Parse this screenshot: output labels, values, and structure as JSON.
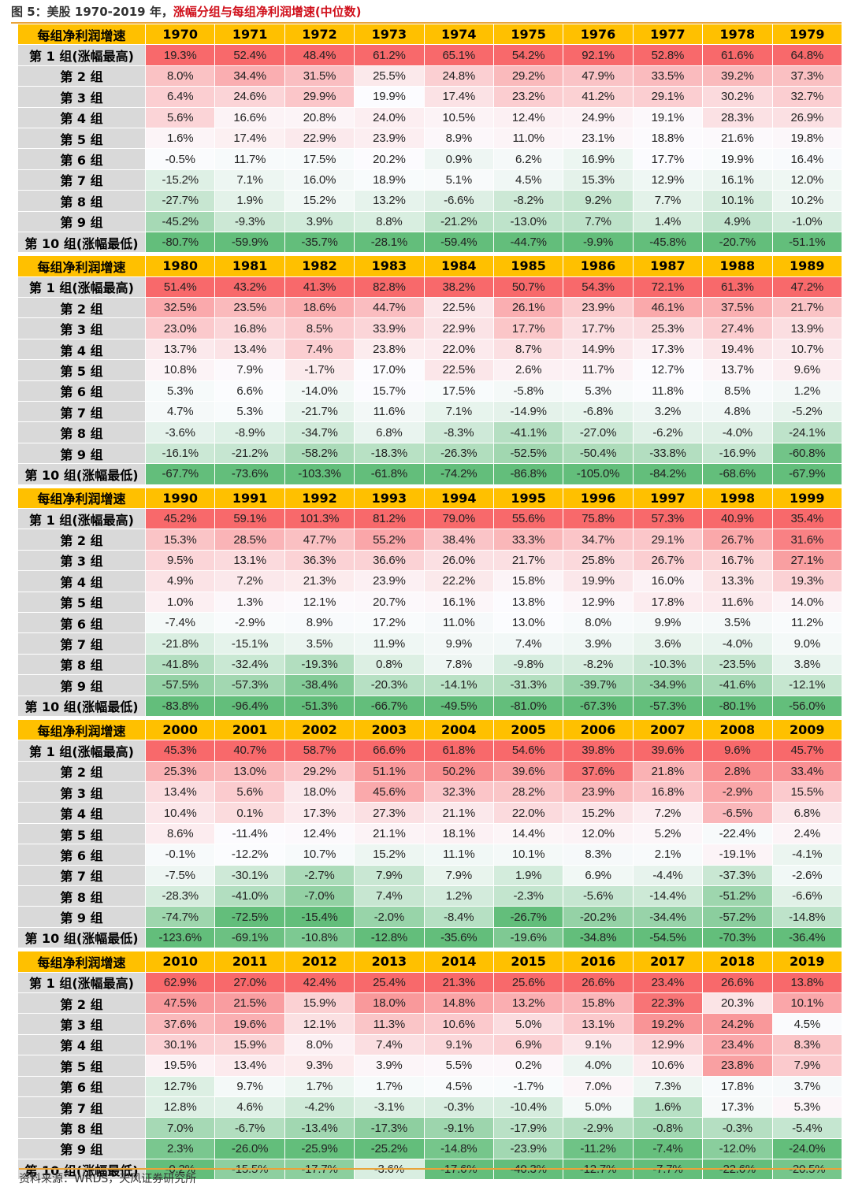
{
  "title": {
    "prefix": "图 5：美股 1970-2019 年，",
    "highlight": "涨幅分组与每组净利润增速(中位数)"
  },
  "header_label": "每组净利润增速",
  "row_labels": [
    "第 1 组(涨幅最高)",
    "第 2 组",
    "第 3 组",
    "第 4 组",
    "第 5 组",
    "第 6 组",
    "第 7 组",
    "第 8 组",
    "第 9 组",
    "第 10 组(涨幅最低)"
  ],
  "blocks": [
    {
      "years": [
        "1970",
        "1971",
        "1972",
        "1973",
        "1974",
        "1975",
        "1976",
        "1977",
        "1978",
        "1979"
      ],
      "rows": [
        [
          "19.3%",
          "52.4%",
          "48.4%",
          "61.2%",
          "65.1%",
          "54.2%",
          "92.1%",
          "52.8%",
          "61.6%",
          "64.8%"
        ],
        [
          "8.0%",
          "34.4%",
          "31.5%",
          "25.5%",
          "24.8%",
          "29.2%",
          "47.9%",
          "33.5%",
          "39.2%",
          "37.3%"
        ],
        [
          "6.4%",
          "24.6%",
          "29.9%",
          "19.9%",
          "17.4%",
          "23.2%",
          "41.2%",
          "29.1%",
          "30.2%",
          "32.7%"
        ],
        [
          "5.6%",
          "16.6%",
          "20.8%",
          "24.0%",
          "10.5%",
          "12.4%",
          "24.9%",
          "19.1%",
          "28.3%",
          "26.9%"
        ],
        [
          "1.6%",
          "17.4%",
          "22.9%",
          "23.9%",
          "8.9%",
          "11.0%",
          "23.1%",
          "18.8%",
          "21.6%",
          "19.8%"
        ],
        [
          "-0.5%",
          "11.7%",
          "17.5%",
          "20.2%",
          "0.9%",
          "6.2%",
          "16.9%",
          "17.7%",
          "19.9%",
          "16.4%"
        ],
        [
          "-15.2%",
          "7.1%",
          "16.0%",
          "18.9%",
          "5.1%",
          "4.5%",
          "15.3%",
          "12.9%",
          "16.1%",
          "12.0%"
        ],
        [
          "-27.7%",
          "1.9%",
          "15.2%",
          "13.2%",
          "-6.6%",
          "-8.2%",
          "9.2%",
          "7.7%",
          "10.1%",
          "10.2%"
        ],
        [
          "-45.2%",
          "-9.3%",
          "3.9%",
          "8.8%",
          "-21.2%",
          "-13.0%",
          "7.7%",
          "1.4%",
          "4.9%",
          "-1.0%"
        ],
        [
          "-80.7%",
          "-59.9%",
          "-35.7%",
          "-28.1%",
          "-59.4%",
          "-44.7%",
          "-9.9%",
          "-45.8%",
          "-20.7%",
          "-51.1%"
        ]
      ]
    },
    {
      "years": [
        "1980",
        "1981",
        "1982",
        "1983",
        "1984",
        "1985",
        "1986",
        "1987",
        "1988",
        "1989"
      ],
      "rows": [
        [
          "51.4%",
          "43.2%",
          "41.3%",
          "82.8%",
          "38.2%",
          "50.7%",
          "54.3%",
          "72.1%",
          "61.3%",
          "47.2%"
        ],
        [
          "32.5%",
          "23.5%",
          "18.6%",
          "44.7%",
          "22.5%",
          "26.1%",
          "23.9%",
          "46.1%",
          "37.5%",
          "21.7%"
        ],
        [
          "23.0%",
          "16.8%",
          "8.5%",
          "33.9%",
          "22.9%",
          "17.7%",
          "17.7%",
          "25.3%",
          "27.4%",
          "13.9%"
        ],
        [
          "13.7%",
          "13.4%",
          "7.4%",
          "23.8%",
          "22.0%",
          "8.7%",
          "14.9%",
          "17.3%",
          "19.4%",
          "10.7%"
        ],
        [
          "10.8%",
          "7.9%",
          "-1.7%",
          "17.0%",
          "22.5%",
          "2.6%",
          "11.7%",
          "12.7%",
          "13.7%",
          "9.6%"
        ],
        [
          "5.3%",
          "6.6%",
          "-14.0%",
          "15.7%",
          "17.5%",
          "-5.8%",
          "5.3%",
          "11.8%",
          "8.5%",
          "1.2%"
        ],
        [
          "4.7%",
          "5.3%",
          "-21.7%",
          "11.6%",
          "7.1%",
          "-14.9%",
          "-6.8%",
          "3.2%",
          "4.8%",
          "-5.2%"
        ],
        [
          "-3.6%",
          "-8.9%",
          "-34.7%",
          "6.8%",
          "-8.3%",
          "-41.1%",
          "-27.0%",
          "-6.2%",
          "-4.0%",
          "-24.1%"
        ],
        [
          "-16.1%",
          "-21.2%",
          "-58.2%",
          "-18.3%",
          "-26.3%",
          "-52.5%",
          "-50.4%",
          "-33.8%",
          "-16.9%",
          "-60.8%"
        ],
        [
          "-67.7%",
          "-73.6%",
          "-103.3%",
          "-61.8%",
          "-74.2%",
          "-86.8%",
          "-105.0%",
          "-84.2%",
          "-68.6%",
          "-67.9%"
        ]
      ]
    },
    {
      "years": [
        "1990",
        "1991",
        "1992",
        "1993",
        "1994",
        "1995",
        "1996",
        "1997",
        "1998",
        "1999"
      ],
      "rows": [
        [
          "45.2%",
          "59.1%",
          "101.3%",
          "81.2%",
          "79.0%",
          "55.6%",
          "75.8%",
          "57.3%",
          "40.9%",
          "35.4%"
        ],
        [
          "15.3%",
          "28.5%",
          "47.7%",
          "55.2%",
          "38.4%",
          "33.3%",
          "34.7%",
          "29.1%",
          "26.7%",
          "31.6%"
        ],
        [
          "9.5%",
          "13.1%",
          "36.3%",
          "36.6%",
          "26.0%",
          "21.7%",
          "25.8%",
          "26.7%",
          "16.7%",
          "27.1%"
        ],
        [
          "4.9%",
          "7.2%",
          "21.3%",
          "23.9%",
          "22.2%",
          "15.8%",
          "19.9%",
          "16.0%",
          "13.3%",
          "19.3%"
        ],
        [
          "1.0%",
          "1.3%",
          "12.1%",
          "20.7%",
          "16.1%",
          "13.8%",
          "12.9%",
          "17.8%",
          "11.6%",
          "14.0%"
        ],
        [
          "-7.4%",
          "-2.9%",
          "8.9%",
          "17.2%",
          "11.0%",
          "13.0%",
          "8.0%",
          "9.9%",
          "3.5%",
          "11.2%"
        ],
        [
          "-21.8%",
          "-15.1%",
          "3.5%",
          "11.9%",
          "9.9%",
          "7.4%",
          "3.9%",
          "3.6%",
          "-4.0%",
          "9.0%"
        ],
        [
          "-41.8%",
          "-32.4%",
          "-19.3%",
          "0.8%",
          "7.8%",
          "-9.8%",
          "-8.2%",
          "-10.3%",
          "-23.5%",
          "3.8%"
        ],
        [
          "-57.5%",
          "-57.3%",
          "-38.4%",
          "-20.3%",
          "-14.1%",
          "-31.3%",
          "-39.7%",
          "-34.9%",
          "-41.6%",
          "-12.1%"
        ],
        [
          "-83.8%",
          "-96.4%",
          "-51.3%",
          "-66.7%",
          "-49.5%",
          "-81.0%",
          "-67.3%",
          "-57.3%",
          "-80.1%",
          "-56.0%"
        ]
      ]
    },
    {
      "years": [
        "2000",
        "2001",
        "2002",
        "2003",
        "2004",
        "2005",
        "2006",
        "2007",
        "2008",
        "2009"
      ],
      "rows": [
        [
          "45.3%",
          "40.7%",
          "58.7%",
          "66.6%",
          "61.8%",
          "54.6%",
          "39.8%",
          "39.6%",
          "9.6%",
          "45.7%"
        ],
        [
          "25.3%",
          "13.0%",
          "29.2%",
          "51.1%",
          "50.2%",
          "39.6%",
          "37.6%",
          "21.8%",
          "2.8%",
          "33.4%"
        ],
        [
          "13.4%",
          "5.6%",
          "18.0%",
          "45.6%",
          "32.3%",
          "28.2%",
          "23.9%",
          "16.8%",
          "-2.9%",
          "15.5%"
        ],
        [
          "10.4%",
          "0.1%",
          "17.3%",
          "27.3%",
          "21.1%",
          "22.0%",
          "15.2%",
          "7.2%",
          "-6.5%",
          "6.8%"
        ],
        [
          "8.6%",
          "-11.4%",
          "12.4%",
          "21.1%",
          "18.1%",
          "14.4%",
          "12.0%",
          "5.2%",
          "-22.4%",
          "2.4%"
        ],
        [
          "-0.1%",
          "-12.2%",
          "10.7%",
          "15.2%",
          "11.1%",
          "10.1%",
          "8.3%",
          "2.1%",
          "-19.1%",
          "-4.1%"
        ],
        [
          "-7.5%",
          "-30.1%",
          "-2.7%",
          "7.9%",
          "7.9%",
          "1.9%",
          "6.9%",
          "-4.4%",
          "-37.3%",
          "-2.6%"
        ],
        [
          "-28.3%",
          "-41.0%",
          "-7.0%",
          "7.4%",
          "1.2%",
          "-2.3%",
          "-5.6%",
          "-14.4%",
          "-51.2%",
          "-6.6%"
        ],
        [
          "-74.7%",
          "-72.5%",
          "-15.4%",
          "-2.0%",
          "-8.4%",
          "-26.7%",
          "-20.2%",
          "-34.4%",
          "-57.2%",
          "-14.8%"
        ],
        [
          "-123.6%",
          "-69.1%",
          "-10.8%",
          "-12.8%",
          "-35.6%",
          "-19.6%",
          "-34.8%",
          "-54.5%",
          "-70.3%",
          "-36.4%"
        ]
      ]
    },
    {
      "years": [
        "2010",
        "2011",
        "2012",
        "2013",
        "2014",
        "2015",
        "2016",
        "2017",
        "2018",
        "2019"
      ],
      "rows": [
        [
          "62.9%",
          "27.0%",
          "42.4%",
          "25.4%",
          "21.3%",
          "25.6%",
          "26.6%",
          "23.4%",
          "26.6%",
          "13.8%"
        ],
        [
          "47.5%",
          "21.5%",
          "15.9%",
          "18.0%",
          "14.8%",
          "13.2%",
          "15.8%",
          "22.3%",
          "20.3%",
          "10.1%"
        ],
        [
          "37.6%",
          "19.6%",
          "12.1%",
          "11.3%",
          "10.6%",
          "5.0%",
          "13.1%",
          "19.2%",
          "24.2%",
          "4.5%"
        ],
        [
          "30.1%",
          "15.9%",
          "8.0%",
          "7.4%",
          "9.1%",
          "6.9%",
          "9.1%",
          "12.9%",
          "23.4%",
          "8.3%"
        ],
        [
          "19.5%",
          "13.4%",
          "9.3%",
          "3.9%",
          "5.5%",
          "0.2%",
          "4.0%",
          "10.6%",
          "23.8%",
          "7.9%"
        ],
        [
          "12.7%",
          "9.7%",
          "1.7%",
          "1.7%",
          "4.5%",
          "-1.7%",
          "7.0%",
          "7.3%",
          "17.8%",
          "3.7%"
        ],
        [
          "12.8%",
          "4.6%",
          "-4.2%",
          "-3.1%",
          "-0.3%",
          "-10.4%",
          "5.0%",
          "1.6%",
          "17.3%",
          "5.3%"
        ],
        [
          "7.0%",
          "-6.7%",
          "-13.4%",
          "-17.3%",
          "-9.1%",
          "-17.9%",
          "-2.9%",
          "-0.8%",
          "-0.3%",
          "-5.4%"
        ],
        [
          "2.3%",
          "-26.0%",
          "-25.9%",
          "-25.2%",
          "-14.8%",
          "-23.9%",
          "-11.2%",
          "-7.4%",
          "-12.0%",
          "-24.0%"
        ],
        [
          "-0.2%",
          "-15.5%",
          "-17.7%",
          "-3.6%",
          "-17.6%",
          "-40.3%",
          "-12.7%",
          "-7.7%",
          "-22.6%",
          "-20.5%"
        ]
      ]
    }
  ],
  "source": "资料来源：WRDS，天风证券研究所",
  "colors": {
    "header": "#ffc000",
    "label": "#d9d9d9",
    "high": "#f8696b",
    "mid": "#fcfcff",
    "low": "#63be7b",
    "accent": "#d0101b"
  }
}
